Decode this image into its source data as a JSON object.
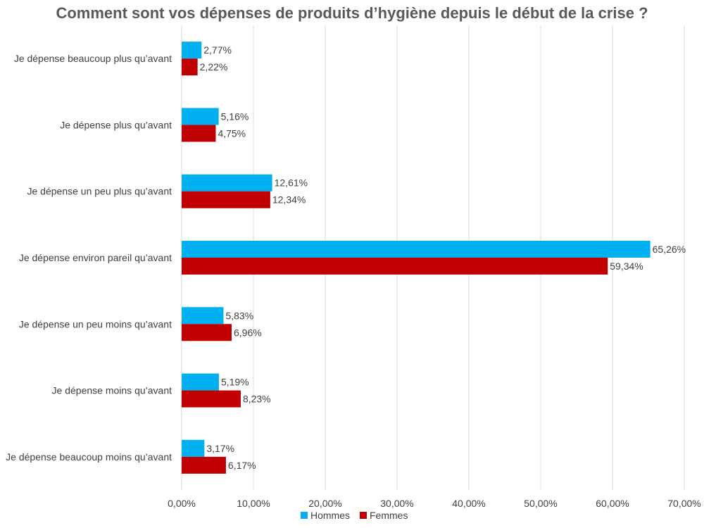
{
  "chart_data": {
    "type": "bar",
    "orientation": "horizontal",
    "title": "Comment sont vos dépenses de produits d’hygiène depuis le début de la crise ?",
    "categories": [
      "Je dépense beaucoup plus qu’avant",
      "Je dépense plus qu’avant",
      "Je dépense un peu plus qu’avant",
      "Je dépense environ pareil qu’avant",
      "Je dépense un peu moins qu’avant",
      "Je dépense moins qu’avant",
      "Je dépense beaucoup moins qu’avant"
    ],
    "series": [
      {
        "name": "Hommes",
        "color": "#00B0F0",
        "values": [
          2.77,
          5.16,
          12.61,
          65.26,
          5.83,
          5.19,
          3.17
        ],
        "labels": [
          "2,77%",
          "5,16%",
          "12,61%",
          "65,26%",
          "5,83%",
          "5,19%",
          "3,17%"
        ]
      },
      {
        "name": "Femmes",
        "color": "#C00000",
        "values": [
          2.22,
          4.75,
          12.34,
          59.34,
          6.96,
          8.23,
          6.17
        ],
        "labels": [
          "2,22%",
          "4,75%",
          "12,34%",
          "59,34%",
          "6,96%",
          "8,23%",
          "6,17%"
        ]
      }
    ],
    "xlim": [
      0,
      70
    ],
    "xticks": [
      0,
      10,
      20,
      30,
      40,
      50,
      60,
      70
    ],
    "xtick_labels": [
      "0,00%",
      "10,00%",
      "20,00%",
      "30,00%",
      "40,00%",
      "50,00%",
      "60,00%",
      "70,00%"
    ],
    "grid": true,
    "gridline_color": "#D9D9D9",
    "legend": "bottom"
  }
}
